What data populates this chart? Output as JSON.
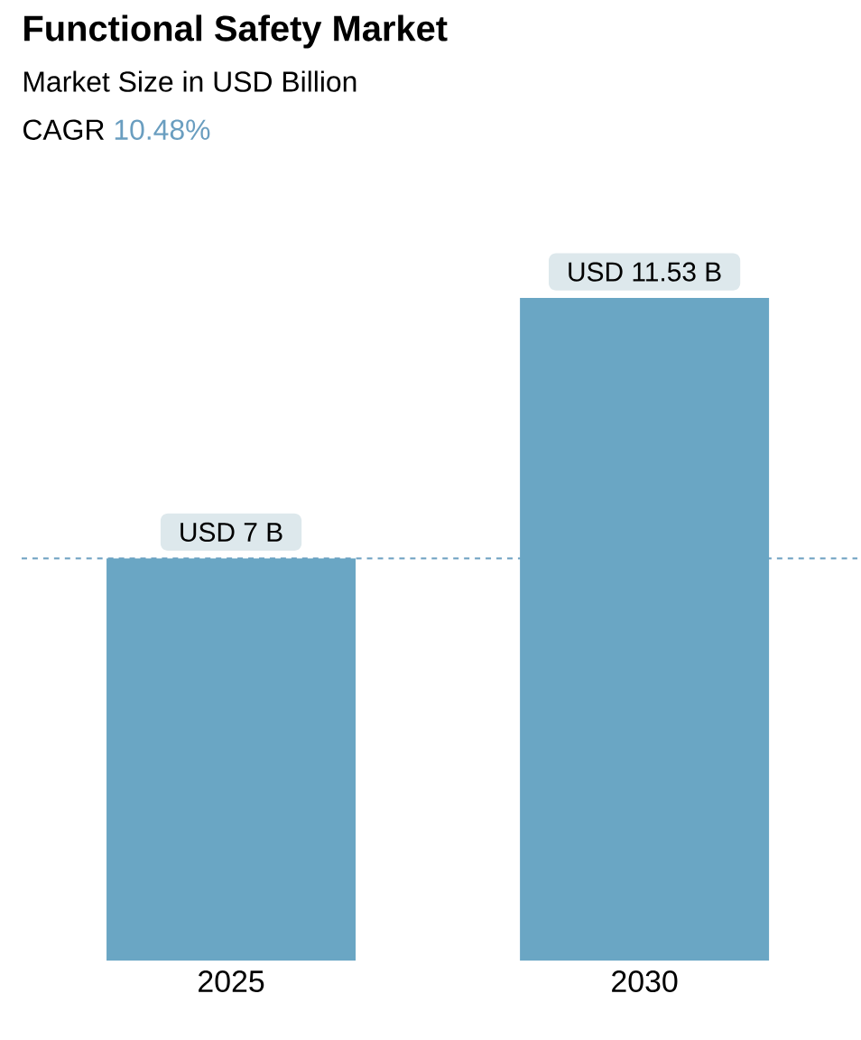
{
  "chart_data": {
    "type": "bar",
    "title": "Functional Safety Market",
    "subtitle": "Market Size in USD Billion",
    "annotations": [
      "CAGR",
      "10.48%"
    ],
    "categories": [
      "2025",
      "2030"
    ],
    "values": [
      7,
      11.53
    ],
    "color": "#6aa6c4",
    "value_labels": [
      "USD 7 B",
      "USD 11.53 B"
    ],
    "ref_lines": [
      {
        "axis": "y",
        "value": 7,
        "color": "#6a9ec0",
        "line_style": "dashed"
      }
    ]
  }
}
